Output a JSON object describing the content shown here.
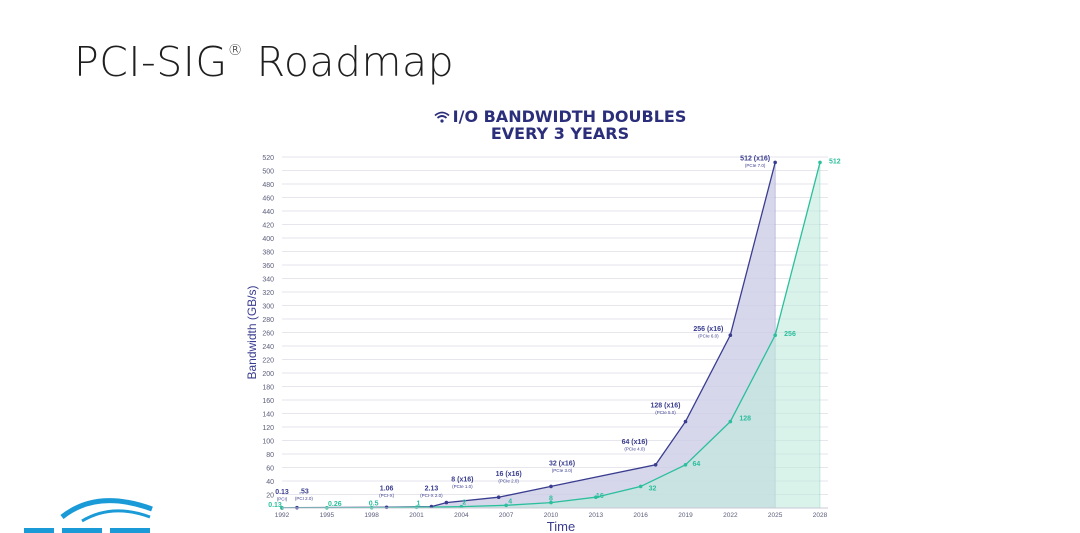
{
  "slide": {
    "title": "PCI-SIG",
    "title_mark": "®",
    "title_suffix": " Roadmap"
  },
  "chart_heading": {
    "line1": "I/O BANDWIDTH DOUBLES",
    "line2": "EVERY 3 YEARS",
    "icon": "wifi-icon"
  },
  "colors": {
    "navy": "#3a3d8f",
    "navy_fill": "#c9cae6",
    "teal": "#2bbf9c",
    "teal_fill": "#bfe9dc",
    "grid": "#e6e6ec",
    "axis_text": "#5a5d7a"
  },
  "chart_data": {
    "type": "area",
    "xlabel": "Time",
    "ylabel": "Bandwidth (GB/s)",
    "ylim": [
      0,
      520
    ],
    "y_ticks": [
      20,
      40,
      60,
      80,
      100,
      120,
      140,
      160,
      180,
      200,
      220,
      240,
      260,
      280,
      300,
      320,
      340,
      360,
      380,
      400,
      420,
      440,
      460,
      480,
      500,
      520
    ],
    "xlim": [
      1992,
      2028
    ],
    "x_ticks": [
      "1992",
      "1995",
      "1998",
      "2001",
      "2004",
      "2007",
      "2010",
      "2013",
      "2016",
      "2019",
      "2022",
      "2025",
      "2028"
    ],
    "grid": true,
    "series": [
      {
        "color": "#3a3d8f",
        "points": [
          {
            "x": 1992,
            "y": 0.13,
            "label": "0.13",
            "sublabel": "(PCI)"
          },
          {
            "x": 1993,
            "y": 0.53,
            "label": ".53",
            "sublabel": "(PCI 2.0)"
          },
          {
            "x": 1999,
            "y": 1.06,
            "label": "1.06",
            "sublabel": "(PCI-X)"
          },
          {
            "x": 2002,
            "y": 2.13,
            "label": "2.13",
            "sublabel": "(PCI-X 2.0)"
          },
          {
            "x": 2003,
            "y": 8,
            "label": "8 (x16)",
            "sublabel": "(PCIe 1.0)"
          },
          {
            "x": 2006.5,
            "y": 16,
            "label": "16 (x16)",
            "sublabel": "(PCIe 2.0)"
          },
          {
            "x": 2010,
            "y": 32,
            "label": "32 (x16)",
            "sublabel": "(PCIe 3.0)"
          },
          {
            "x": 2017,
            "y": 64,
            "label": "64 (x16)",
            "sublabel": "(PCIe 4.0)"
          },
          {
            "x": 2019,
            "y": 128,
            "label": "128 (x16)",
            "sublabel": "(PCIe 5.0)"
          },
          {
            "x": 2022,
            "y": 256,
            "label": "256 (x16)",
            "sublabel": "(PCIe 6.0)"
          },
          {
            "x": 2025,
            "y": 512,
            "label": "512 (x16)",
            "sublabel": "(PCIe 7.0)"
          }
        ]
      },
      {
        "color": "#2bbf9c",
        "points": [
          {
            "x": 1992,
            "y": 0.13,
            "label": "0.13"
          },
          {
            "x": 1995,
            "y": 0.26,
            "label": "0.26"
          },
          {
            "x": 1998,
            "y": 0.5,
            "label": "0.5"
          },
          {
            "x": 2001,
            "y": 1,
            "label": "1"
          },
          {
            "x": 2004,
            "y": 2,
            "label": "2"
          },
          {
            "x": 2007,
            "y": 4,
            "label": "4"
          },
          {
            "x": 2010,
            "y": 8,
            "label": "8"
          },
          {
            "x": 2013,
            "y": 16,
            "label": "16"
          },
          {
            "x": 2016,
            "y": 32,
            "label": "32"
          },
          {
            "x": 2019,
            "y": 64,
            "label": "64"
          },
          {
            "x": 2022,
            "y": 128,
            "label": "128"
          },
          {
            "x": 2025,
            "y": 256,
            "label": "256"
          },
          {
            "x": 2028,
            "y": 512,
            "label": "512"
          }
        ]
      }
    ]
  }
}
